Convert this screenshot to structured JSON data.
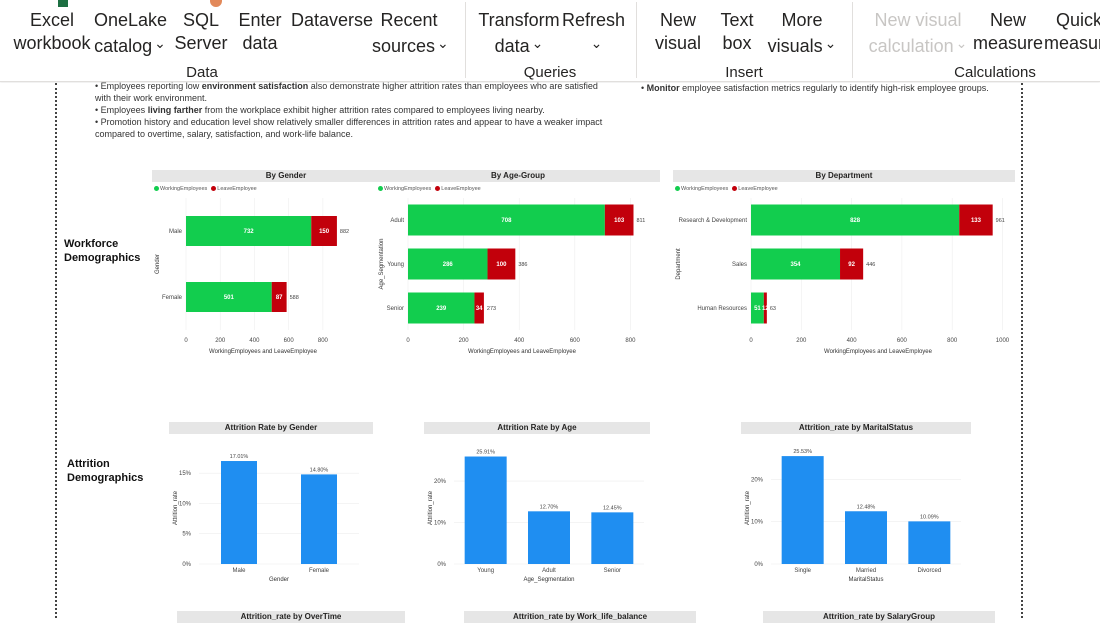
{
  "ribbon": {
    "buttons": [
      {
        "name": "excel-workbook-button",
        "lines": [
          "Excel",
          "workbook"
        ],
        "chev": false,
        "disabled": false
      },
      {
        "name": "onelake-catalog-button",
        "lines": [
          "OneLake",
          "catalog"
        ],
        "chev": true,
        "disabled": false
      },
      {
        "name": "sql-server-button",
        "lines": [
          "SQL",
          "Server"
        ],
        "chev": false,
        "disabled": false
      },
      {
        "name": "enter-data-button",
        "lines": [
          "Enter",
          "data"
        ],
        "chev": false,
        "disabled": false
      },
      {
        "name": "dataverse-button",
        "lines": [
          "Dataverse",
          ""
        ],
        "chev": false,
        "disabled": false
      },
      {
        "name": "recent-sources-button",
        "lines": [
          "Recent",
          "sources"
        ],
        "chev": true,
        "disabled": false
      },
      {
        "name": "transform-data-button",
        "lines": [
          "Transform",
          "data"
        ],
        "chev": true,
        "disabled": false
      },
      {
        "name": "refresh-button",
        "lines": [
          "Refresh",
          ""
        ],
        "chev": true,
        "disabled": false
      },
      {
        "name": "new-visual-button",
        "lines": [
          "New",
          "visual"
        ],
        "chev": false,
        "disabled": false
      },
      {
        "name": "text-box-button",
        "lines": [
          "Text",
          "box"
        ],
        "chev": false,
        "disabled": false
      },
      {
        "name": "more-visuals-button",
        "lines": [
          "More",
          "visuals"
        ],
        "chev": true,
        "disabled": false
      },
      {
        "name": "new-visual-calculation-button",
        "lines": [
          "New visual",
          "calculation"
        ],
        "chev": true,
        "disabled": true
      },
      {
        "name": "new-measure-button",
        "lines": [
          "New",
          "measure"
        ],
        "chev": false,
        "disabled": false
      },
      {
        "name": "quick-measure-button",
        "lines": [
          "Quick",
          "measure"
        ],
        "chev": false,
        "disabled": false
      }
    ],
    "groups": [
      "Data",
      "Queries",
      "Insert",
      "Calculations"
    ]
  },
  "notes": {
    "left": [
      {
        "pre": "• Employees reporting low ",
        "bold": "environment satisfaction",
        "post": " also demonstrate higher attrition rates than employees who are satisfied"
      },
      {
        "pre": "with their work environment.",
        "bold": "",
        "post": ""
      },
      {
        "pre": "• Employees ",
        "bold": "living farther",
        "post": " from the workplace exhibit higher attrition rates compared to employees living nearby."
      },
      {
        "pre": "• Promotion history and education level show relatively smaller differences in attrition rates and appear to have a weaker impact",
        "bold": "",
        "post": ""
      },
      {
        "pre": "compared to overtime, salary, satisfaction, and work-life balance.",
        "bold": "",
        "post": ""
      }
    ],
    "right": [
      {
        "pre": "• ",
        "bold": "Monitor",
        "post": " employee satisfaction metrics regularly to identify high-risk employee groups."
      }
    ]
  },
  "sections": {
    "workforce": [
      "Workforce",
      "Demographics"
    ],
    "attrition": [
      "Attrition",
      "Demographics"
    ]
  },
  "colors": {
    "working": "#12cd4e",
    "leave": "#c2000b",
    "rate": "#1f8ef1"
  },
  "legend": {
    "working": "WorkingEmployees",
    "leave": "LeaveEmployee"
  },
  "bottom_titles": [
    "Attrition_rate by OverTime",
    "Attrition_rate by Work_life_balance",
    "Attrition_rate by SalaryGroup"
  ],
  "chart_data": [
    {
      "type": "bar",
      "orientation": "horizontal",
      "stacked": true,
      "title": "By Gender",
      "categories": [
        "Male",
        "Female"
      ],
      "series": [
        {
          "name": "WorkingEmployees",
          "values": [
            732,
            501
          ]
        },
        {
          "name": "LeaveEmployee",
          "values": [
            150,
            87
          ]
        }
      ],
      "totals": [
        882,
        588
      ],
      "xlabel": "WorkingEmployees and LeaveEmployee",
      "ylabel": "Gender",
      "xticks": [
        0,
        200,
        400,
        600,
        800
      ],
      "xlim": [
        0,
        900
      ]
    },
    {
      "type": "bar",
      "orientation": "horizontal",
      "stacked": true,
      "title": "By Age-Group",
      "categories": [
        "Adult",
        "Young",
        "Senior"
      ],
      "series": [
        {
          "name": "WorkingEmployees",
          "values": [
            708,
            286,
            239
          ]
        },
        {
          "name": "LeaveEmployee",
          "values": [
            103,
            100,
            34
          ]
        }
      ],
      "totals": [
        811,
        386,
        273
      ],
      "xlabel": "WorkingEmployees and LeaveEmployee",
      "ylabel": "Age_Segmentation",
      "xticks": [
        0,
        200,
        400,
        600,
        800
      ],
      "xlim": [
        0,
        820
      ]
    },
    {
      "type": "bar",
      "orientation": "horizontal",
      "stacked": true,
      "title": "By Department",
      "categories": [
        "Research & Development",
        "Sales",
        "Human Resources"
      ],
      "series": [
        {
          "name": "WorkingEmployees",
          "values": [
            828,
            354,
            51
          ]
        },
        {
          "name": "LeaveEmployee",
          "values": [
            133,
            92,
            12
          ]
        }
      ],
      "totals": [
        961,
        446,
        63
      ],
      "xlabel": "WorkingEmployees and LeaveEmployee",
      "ylabel": "Department",
      "xticks": [
        0,
        200,
        400,
        600,
        800,
        1000
      ],
      "xlim": [
        0,
        1010
      ]
    },
    {
      "type": "bar",
      "title": "Attrition Rate by Gender",
      "categories": [
        "Male",
        "Female"
      ],
      "values": [
        17.01,
        14.8
      ],
      "labels": [
        "17.01%",
        "14.80%"
      ],
      "xlabel": "Gender",
      "ylabel": "Attrition_rate",
      "yticks": [
        "0%",
        "5%",
        "10%",
        "15%"
      ],
      "ylim": [
        0,
        18.5
      ]
    },
    {
      "type": "bar",
      "title": "Attrition Rate by Age",
      "categories": [
        "Young",
        "Adult",
        "Senior"
      ],
      "values": [
        25.91,
        12.7,
        12.45
      ],
      "labels": [
        "25.91%",
        "12.70%",
        "12.45%"
      ],
      "xlabel": "Age_Segmentation",
      "ylabel": "Attrition_rate",
      "yticks": [
        "0%",
        "10%",
        "20%"
      ],
      "ylim": [
        0,
        27
      ]
    },
    {
      "type": "bar",
      "title": "Attrition_rate by MaritalStatus",
      "categories": [
        "Single",
        "Married",
        "Divorced"
      ],
      "values": [
        25.53,
        12.48,
        10.09
      ],
      "labels": [
        "25.53%",
        "12.48%",
        "10.09%"
      ],
      "xlabel": "MaritalStatus",
      "ylabel": "Attrition_rate",
      "yticks": [
        "0%",
        "10%",
        "20%"
      ],
      "ylim": [
        0,
        26.5
      ]
    }
  ]
}
